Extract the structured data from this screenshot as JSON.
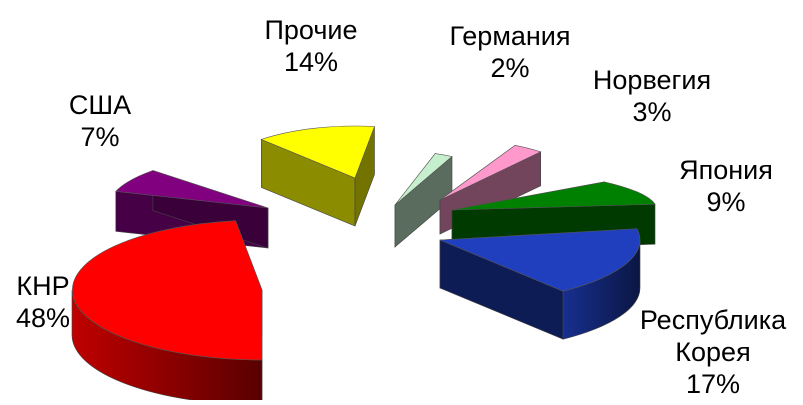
{
  "chart_data": {
    "type": "pie",
    "title": "",
    "slices": [
      {
        "label": "КНР",
        "value": 48,
        "display": "48%",
        "color": "#ff0000",
        "label_lines": [
          "КНР",
          "48%"
        ]
      },
      {
        "label": "США",
        "value": 7,
        "display": "7%",
        "color": "#800080",
        "label_lines": [
          "США",
          "7%"
        ]
      },
      {
        "label": "Прочие",
        "value": 14,
        "display": "14%",
        "color": "#ffff00",
        "label_lines": [
          "Прочие",
          "14%"
        ]
      },
      {
        "label": "Германия",
        "value": 2,
        "display": "2%",
        "color": "#c6efce",
        "label_lines": [
          "Германия",
          "2%"
        ]
      },
      {
        "label": "Норвегия",
        "value": 3,
        "display": "3%",
        "color": "#ff99cc",
        "label_lines": [
          "Норвегия",
          "3%"
        ]
      },
      {
        "label": "Япония",
        "value": 9,
        "display": "9%",
        "color": "#008000",
        "label_lines": [
          "Япония",
          "9%"
        ]
      },
      {
        "label": "Республика Корея",
        "value": 17,
        "display": "17%",
        "color": "#1f3fbf",
        "label_lines": [
          "Республика",
          "Корея",
          "17%"
        ]
      }
    ],
    "legend": "none",
    "style": "3d-exploded"
  }
}
